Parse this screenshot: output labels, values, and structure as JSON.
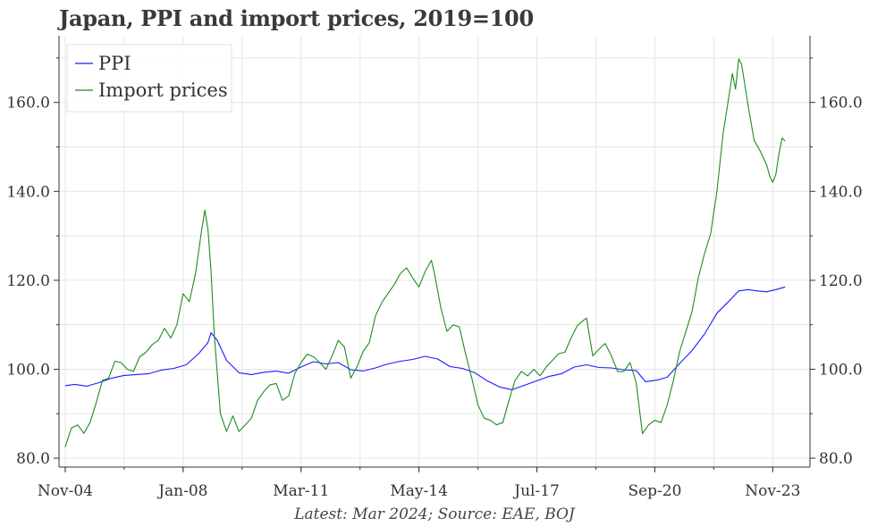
{
  "chart_data": {
    "type": "line",
    "title": "Japan, PPI and import prices, 2019=100",
    "note": "Latest: Mar 2024; Source: EAE, BOJ",
    "xlabel": "",
    "ylabel": "",
    "x_ticks": [
      "Nov-04",
      "Jan-08",
      "Mar-11",
      "May-14",
      "Jul-17",
      "Sep-20",
      "Nov-23"
    ],
    "x_range": [
      "2004-09",
      "2024-11"
    ],
    "y_ticks": [
      80.0,
      100.0,
      120.0,
      140.0,
      160.0
    ],
    "ylim": [
      78,
      175
    ],
    "grid": true,
    "legend_position": "top-left",
    "secondary_y_axis_mirrored": true,
    "series": [
      {
        "name": "PPI",
        "color": "#1a1aff",
        "points": [
          [
            "2004-11",
            96.3
          ],
          [
            "2005-02",
            96.6
          ],
          [
            "2005-06",
            96.2
          ],
          [
            "2005-10",
            97.0
          ],
          [
            "2006-02",
            98.0
          ],
          [
            "2006-06",
            98.6
          ],
          [
            "2006-10",
            98.8
          ],
          [
            "2007-02",
            99.0
          ],
          [
            "2007-06",
            99.8
          ],
          [
            "2007-10",
            100.2
          ],
          [
            "2008-02",
            101.0
          ],
          [
            "2008-06",
            103.5
          ],
          [
            "2008-09",
            106.0
          ],
          [
            "2008-10",
            108.2
          ],
          [
            "2008-12",
            106.5
          ],
          [
            "2009-03",
            102.0
          ],
          [
            "2009-07",
            99.2
          ],
          [
            "2009-11",
            98.8
          ],
          [
            "2010-03",
            99.3
          ],
          [
            "2010-07",
            99.6
          ],
          [
            "2010-11",
            99.1
          ],
          [
            "2011-03",
            100.5
          ],
          [
            "2011-07",
            101.7
          ],
          [
            "2011-11",
            101.2
          ],
          [
            "2012-03",
            101.5
          ],
          [
            "2012-07",
            99.9
          ],
          [
            "2012-11",
            99.6
          ],
          [
            "2013-03",
            100.3
          ],
          [
            "2013-07",
            101.2
          ],
          [
            "2013-11",
            101.8
          ],
          [
            "2014-03",
            102.2
          ],
          [
            "2014-07",
            102.9
          ],
          [
            "2014-11",
            102.3
          ],
          [
            "2015-03",
            100.6
          ],
          [
            "2015-07",
            100.2
          ],
          [
            "2015-11",
            99.2
          ],
          [
            "2016-03",
            97.4
          ],
          [
            "2016-07",
            96.0
          ],
          [
            "2016-11",
            95.4
          ],
          [
            "2017-03",
            96.4
          ],
          [
            "2017-07",
            97.4
          ],
          [
            "2017-11",
            98.4
          ],
          [
            "2018-03",
            99.0
          ],
          [
            "2018-07",
            100.5
          ],
          [
            "2018-11",
            101.0
          ],
          [
            "2019-03",
            100.4
          ],
          [
            "2019-07",
            100.3
          ],
          [
            "2019-11",
            99.9
          ],
          [
            "2020-03",
            99.7
          ],
          [
            "2020-06",
            97.2
          ],
          [
            "2020-10",
            97.6
          ],
          [
            "2021-01",
            98.2
          ],
          [
            "2021-05",
            101.3
          ],
          [
            "2021-09",
            104.2
          ],
          [
            "2022-01",
            107.9
          ],
          [
            "2022-05",
            112.6
          ],
          [
            "2022-09",
            115.4
          ],
          [
            "2022-12",
            117.6
          ],
          [
            "2023-03",
            117.9
          ],
          [
            "2023-06",
            117.6
          ],
          [
            "2023-09",
            117.4
          ],
          [
            "2023-12",
            117.9
          ],
          [
            "2024-03",
            118.5
          ]
        ]
      },
      {
        "name": "Import prices",
        "color": "#1e8c1e",
        "points": [
          [
            "2004-11",
            82.5
          ],
          [
            "2005-01",
            86.8
          ],
          [
            "2005-03",
            87.5
          ],
          [
            "2005-05",
            85.6
          ],
          [
            "2005-07",
            88.0
          ],
          [
            "2005-09",
            92.5
          ],
          [
            "2005-11",
            97.5
          ],
          [
            "2006-01",
            98.0
          ],
          [
            "2006-03",
            101.8
          ],
          [
            "2006-05",
            101.5
          ],
          [
            "2006-07",
            100.0
          ],
          [
            "2006-09",
            99.5
          ],
          [
            "2006-11",
            102.8
          ],
          [
            "2007-01",
            103.8
          ],
          [
            "2007-03",
            105.5
          ],
          [
            "2007-05",
            106.5
          ],
          [
            "2007-07",
            109.2
          ],
          [
            "2007-09",
            107.0
          ],
          [
            "2007-11",
            110.0
          ],
          [
            "2008-01",
            117.0
          ],
          [
            "2008-03",
            115.2
          ],
          [
            "2008-05",
            121.5
          ],
          [
            "2008-07",
            131.5
          ],
          [
            "2008-08",
            135.8
          ],
          [
            "2008-09",
            131.5
          ],
          [
            "2008-10",
            122.0
          ],
          [
            "2008-11",
            108.0
          ],
          [
            "2009-01",
            90.0
          ],
          [
            "2009-03",
            86.0
          ],
          [
            "2009-05",
            89.5
          ],
          [
            "2009-07",
            86.0
          ],
          [
            "2009-09",
            87.5
          ],
          [
            "2009-11",
            89.0
          ],
          [
            "2010-01",
            93.0
          ],
          [
            "2010-03",
            95.0
          ],
          [
            "2010-05",
            96.5
          ],
          [
            "2010-07",
            96.8
          ],
          [
            "2010-09",
            93.0
          ],
          [
            "2010-11",
            94.0
          ],
          [
            "2011-01",
            99.0
          ],
          [
            "2011-03",
            101.5
          ],
          [
            "2011-05",
            103.4
          ],
          [
            "2011-07",
            102.8
          ],
          [
            "2011-09",
            101.5
          ],
          [
            "2011-11",
            100.0
          ],
          [
            "2012-01",
            103.0
          ],
          [
            "2012-03",
            106.5
          ],
          [
            "2012-05",
            105.0
          ],
          [
            "2012-07",
            98.0
          ],
          [
            "2012-09",
            100.5
          ],
          [
            "2012-11",
            104.0
          ],
          [
            "2013-01",
            106.0
          ],
          [
            "2013-03",
            112.0
          ],
          [
            "2013-05",
            115.0
          ],
          [
            "2013-07",
            117.0
          ],
          [
            "2013-09",
            119.0
          ],
          [
            "2013-11",
            121.5
          ],
          [
            "2014-01",
            122.8
          ],
          [
            "2014-03",
            120.5
          ],
          [
            "2014-05",
            118.5
          ],
          [
            "2014-07",
            122.0
          ],
          [
            "2014-09",
            124.5
          ],
          [
            "2014-10",
            121.5
          ],
          [
            "2014-12",
            114.0
          ],
          [
            "2015-02",
            108.5
          ],
          [
            "2015-04",
            110.0
          ],
          [
            "2015-06",
            109.5
          ],
          [
            "2015-08",
            103.5
          ],
          [
            "2015-10",
            98.0
          ],
          [
            "2015-12",
            92.0
          ],
          [
            "2016-02",
            89.0
          ],
          [
            "2016-04",
            88.5
          ],
          [
            "2016-06",
            87.5
          ],
          [
            "2016-08",
            88.0
          ],
          [
            "2016-10",
            93.0
          ],
          [
            "2016-12",
            97.5
          ],
          [
            "2017-02",
            99.5
          ],
          [
            "2017-04",
            98.5
          ],
          [
            "2017-06",
            100.0
          ],
          [
            "2017-08",
            98.5
          ],
          [
            "2017-10",
            100.5
          ],
          [
            "2017-12",
            102.0
          ],
          [
            "2018-02",
            103.5
          ],
          [
            "2018-04",
            103.8
          ],
          [
            "2018-06",
            107.0
          ],
          [
            "2018-08",
            109.8
          ],
          [
            "2018-10",
            111.0
          ],
          [
            "2018-11",
            111.5
          ],
          [
            "2019-01",
            103.0
          ],
          [
            "2019-03",
            104.5
          ],
          [
            "2019-05",
            105.8
          ],
          [
            "2019-07",
            103.0
          ],
          [
            "2019-09",
            99.5
          ],
          [
            "2019-11",
            99.5
          ],
          [
            "2020-01",
            101.5
          ],
          [
            "2020-03",
            97.0
          ],
          [
            "2020-05",
            85.5
          ],
          [
            "2020-07",
            87.5
          ],
          [
            "2020-09",
            88.5
          ],
          [
            "2020-11",
            88.0
          ],
          [
            "2021-01",
            92.0
          ],
          [
            "2021-03",
            97.5
          ],
          [
            "2021-05",
            104.0
          ],
          [
            "2021-07",
            108.5
          ],
          [
            "2021-09",
            113.0
          ],
          [
            "2021-11",
            120.5
          ],
          [
            "2022-01",
            126.0
          ],
          [
            "2022-03",
            130.5
          ],
          [
            "2022-05",
            140.0
          ],
          [
            "2022-07",
            153.0
          ],
          [
            "2022-09",
            162.0
          ],
          [
            "2022-10",
            166.5
          ],
          [
            "2022-11",
            163.0
          ],
          [
            "2022-12",
            169.8
          ],
          [
            "2023-01",
            168.5
          ],
          [
            "2023-03",
            159.5
          ],
          [
            "2023-05",
            151.5
          ],
          [
            "2023-07",
            149.0
          ],
          [
            "2023-09",
            146.0
          ],
          [
            "2023-10",
            143.5
          ],
          [
            "2023-11",
            142.0
          ],
          [
            "2023-12",
            143.8
          ],
          [
            "2024-01",
            148.5
          ],
          [
            "2024-02",
            152.0
          ],
          [
            "2024-03",
            151.3
          ]
        ]
      }
    ]
  }
}
